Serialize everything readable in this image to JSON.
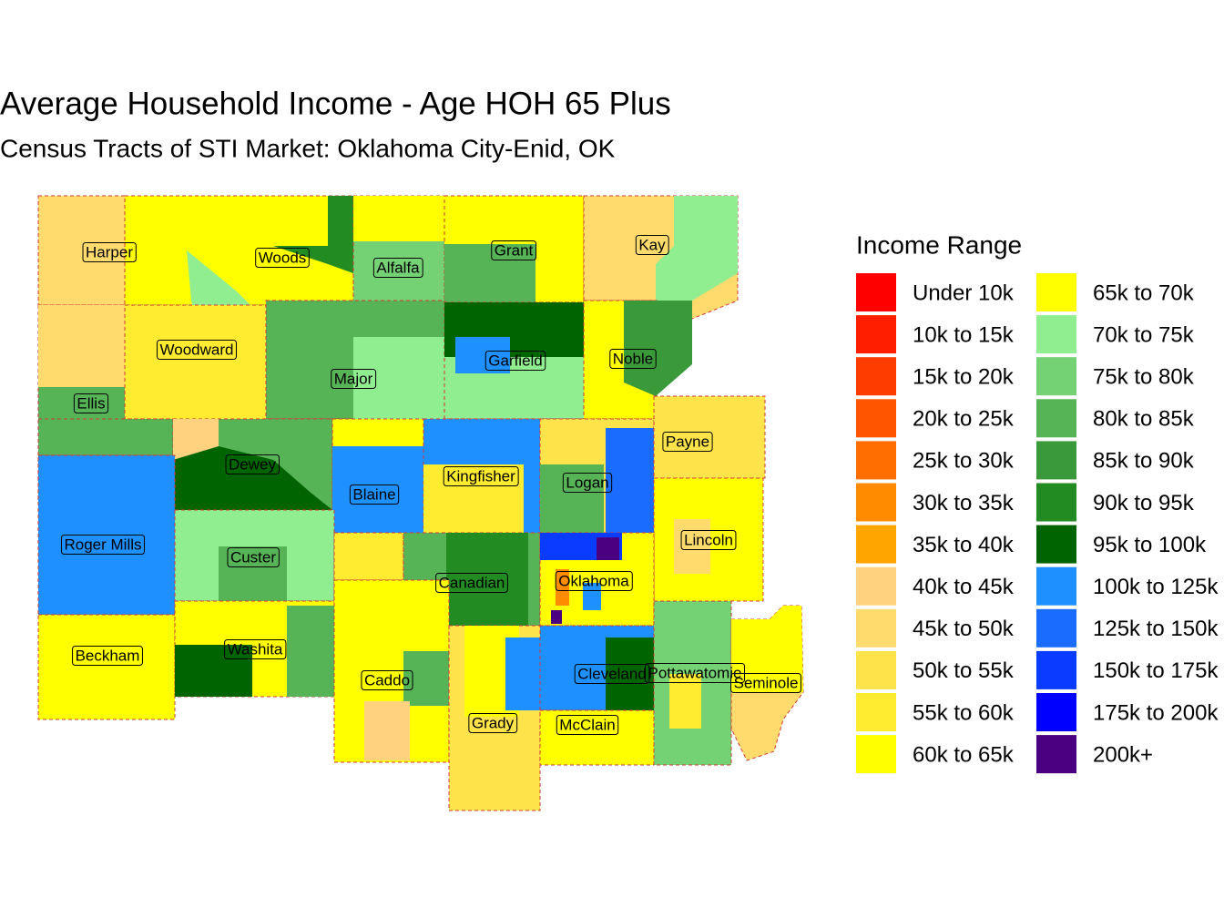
{
  "title": "Average Household Income - Age HOH 65 Plus",
  "subtitle": "Census Tracts of STI Market: Oklahoma City-Enid, OK",
  "legend": {
    "title": "Income Range",
    "items": [
      {
        "label": "Under 10k",
        "color": "#ff0000"
      },
      {
        "label": "10k to 15k",
        "color": "#ff1e00"
      },
      {
        "label": "15k to 20k",
        "color": "#ff3c00"
      },
      {
        "label": "20k to 25k",
        "color": "#ff5500"
      },
      {
        "label": "25k to 30k",
        "color": "#ff6e00"
      },
      {
        "label": "30k to 35k",
        "color": "#ff8c00"
      },
      {
        "label": "35k to 40k",
        "color": "#ffa500"
      },
      {
        "label": "40k to 45k",
        "color": "#ffd27f"
      },
      {
        "label": "45k to 50k",
        "color": "#ffdb6e"
      },
      {
        "label": "50k to 55k",
        "color": "#ffe34a"
      },
      {
        "label": "55k to 60k",
        "color": "#ffeb30"
      },
      {
        "label": "60k to 65k",
        "color": "#ffff00"
      },
      {
        "label": "65k to 70k",
        "color": "#ffff00"
      },
      {
        "label": "70k to 75k",
        "color": "#90ee90"
      },
      {
        "label": "75k to 80k",
        "color": "#74d174"
      },
      {
        "label": "80k to 85k",
        "color": "#56b356"
      },
      {
        "label": "85k to 90k",
        "color": "#3a9a3a"
      },
      {
        "label": "90k to 95k",
        "color": "#228b22"
      },
      {
        "label": "95k to 100k",
        "color": "#006400"
      },
      {
        "label": "100k to 125k",
        "color": "#1e90ff"
      },
      {
        "label": "125k to 150k",
        "color": "#1a6cff"
      },
      {
        "label": "150k to 175k",
        "color": "#0a3cff"
      },
      {
        "label": "175k to 200k",
        "color": "#0000ff"
      },
      {
        "label": "200k+",
        "color": "#4b0082"
      }
    ]
  },
  "counties": [
    "Harper",
    "Woods",
    "Alfalfa",
    "Grant",
    "Kay",
    "Woodward",
    "Major",
    "Garfield",
    "Noble",
    "Ellis",
    "Payne",
    "Dewey",
    "Kingfisher",
    "Logan",
    "Blaine",
    "Lincoln",
    "Roger Mills",
    "Custer",
    "Canadian",
    "Oklahoma",
    "Washita",
    "Beckham",
    "Caddo",
    "Cleveland",
    "Pottawatomie",
    "Seminole",
    "Grady",
    "McClain"
  ]
}
